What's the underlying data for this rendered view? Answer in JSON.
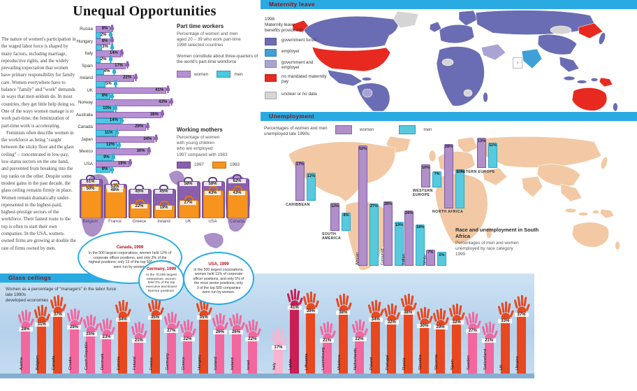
{
  "page_title": "Unequal Opportunities",
  "intro": {
    "para1": "The nature of women's participation in the waged labor force is shaped by many factors, including marriage, reproductive rights, and the widely prevailing expectation that women have primary responsibility for family care. Women everywhere have to balance \"family\" and \"work\" demands in ways that men seldom do. In most countries, they get little help doing so. One of the ways women manage is to work part-time; the feminization of part-time work is accelerating.",
    "para2": "Feminists often describe women in the workforce as being \"caught between the sticky floor and the glass ceiling\" – concentrated in low-pay, low-status sectors on the one hand, and prevented from breaking into the top ranks on the other. Despite some modest gains in the past decade, the glass ceiling remains firmly in place. Women remain dramatically under-represented in the highest-paid, highest-prestige sectors of the workforce. Their fastest route to the top is often to start their own companies. In the USA, women-owned firms are growing at double the rate of firms owned by men."
  },
  "colors": {
    "women_bar": "#b690d2",
    "women_icon": "#8f63b5",
    "men_bar": "#4cc7e2",
    "men_icon": "#2fafd0",
    "purple_1997": "#8a5fae",
    "orange_1983": "#f7941d",
    "header_bar": "#29abe2",
    "header_text": "#7c1518",
    "map_slate": "#6a6db3",
    "map_blue": "#3fa0d8",
    "map_lightpurple": "#a8a4d4",
    "map_red": "#e8291f",
    "map_gray": "#d5d5d5",
    "map_peach": "#f2c9a4",
    "unemp_women": "#b18fc9",
    "unemp_men": "#58cade",
    "hand": {
      "low": "#f8b4cf",
      "mid": "#f2679e",
      "high": "#e8481f",
      "top": "#c81f55"
    }
  },
  "chart_data": [
    {
      "id": "part_time_workers",
      "type": "bar",
      "orientation": "horizontal",
      "unit": "%",
      "title": "Part time workers",
      "subtitle": "Percentage of women and men\naged 20 – 39 who work part-time\n1998  selected countries",
      "note": "Women constitute about three-quarters of the world's part-time workforce",
      "legend": [
        "women",
        "men"
      ],
      "categories": [
        "Russia",
        "Hungary",
        "Italy",
        "Spain",
        "Ireland",
        "UK",
        "Norway",
        "Australia",
        "Canada",
        "Japan",
        "Mexico",
        "USA"
      ],
      "series": [
        {
          "name": "women",
          "values": [
            8,
            8,
            14,
            17,
            22,
            41,
            43,
            38,
            29,
            34,
            30,
            19
          ]
        },
        {
          "name": "men",
          "values": [
            2,
            3,
            2,
            4,
            5,
            8,
            10,
            14,
            11,
            12,
            9,
            8
          ]
        }
      ],
      "xlim": [
        0,
        45
      ]
    },
    {
      "id": "working_mothers",
      "type": "bar",
      "unit": "%",
      "title": "Working mothers",
      "subtitle": "Percentage of women\nwith young children\nwho are employed\n1997 compared with 1983",
      "legend": [
        "1997",
        "1983"
      ],
      "categories": [
        "Belgium",
        "France",
        "Greece",
        "Ireland",
        "UK",
        "USA",
        "Canada"
      ],
      "series": [
        {
          "name": "1997",
          "values": [
            61,
            53,
            45,
            45,
            58,
            58,
            62
          ]
        },
        {
          "name": "1983",
          "values": [
            50,
            48,
            22,
            19,
            27,
            43,
            43
          ]
        }
      ],
      "ylim": [
        0,
        70
      ]
    },
    {
      "id": "maternity_leave",
      "type": "choropleth-map",
      "title": "Maternity leave",
      "subtitle": "1998\nMaternity leave\nbenefits provided by:",
      "legend": [
        {
          "label": "government funds",
          "color": "#6a6db3"
        },
        {
          "label": "employer",
          "color": "#3fa0d8"
        },
        {
          "label": "government and\nemployer",
          "color": "#a8a4d4"
        },
        {
          "label": "no mandated maternity pay",
          "color": "#e8291f"
        },
        {
          "label": "unclear or no data",
          "color": "#d5d5d5",
          "gap": true
        }
      ]
    },
    {
      "id": "unemployment",
      "type": "bar",
      "unit": "%",
      "title": "Unemployment",
      "subtitle": "Percentages of women and men\nunemployed late 1990s",
      "legend": [
        "women",
        "men"
      ],
      "categories": [
        "Caribbean",
        "South America",
        "Western Europe",
        "Eastern Europe",
        "North Africa"
      ],
      "series": [
        {
          "name": "women",
          "values": [
            17,
            12,
            10,
            13,
            28
          ]
        },
        {
          "name": "men",
          "values": [
            12,
            8,
            7,
            11,
            17
          ]
        }
      ],
      "ylim": [
        0,
        55
      ]
    },
    {
      "id": "sa_race_unemployment",
      "type": "bar",
      "unit": "%",
      "title": "Race and unemployment in South Africa",
      "subtitle": "Percentages of men and women\nunemployed by race category\n1999",
      "legend": [
        "women",
        "men"
      ],
      "categories": [
        "African",
        "Coloured",
        "Indian",
        "White"
      ],
      "series": [
        {
          "name": "women",
          "values": [
            52,
            28,
            24,
            7
          ]
        },
        {
          "name": "men",
          "values": [
            27,
            19,
            18,
            6
          ]
        }
      ],
      "ylim": [
        0,
        55
      ]
    },
    {
      "id": "glass_ceilings",
      "type": "bar",
      "unit": "%",
      "title": "Glass ceilings",
      "subtitle": "Women as a percentage of \"managers\" in the labor force\nlate 1990s\ndeveloped economies",
      "categories": [
        "Austria",
        "Belgium",
        "Canada",
        "Croatia",
        "Czech Republic",
        "Denmark",
        "Estonia",
        "Finland",
        "France",
        "Germany",
        "Greece",
        "Hungary",
        "Iceland",
        "Ireland",
        "Israel",
        "Italy",
        "Latvia",
        "Lithuania",
        "Luxembourg",
        "Moldova",
        "Netherlands",
        "Poland",
        "Portugal",
        "Russia",
        "Slovakia",
        "Slovenia",
        "Spain",
        "Sweden",
        "Switzerland",
        "UK",
        "Ukraine"
      ],
      "values": [
        28,
        31,
        37,
        29,
        25,
        23,
        34,
        21,
        35,
        27,
        22,
        35,
        26,
        26,
        22,
        17,
        41,
        39,
        21,
        38,
        22,
        34,
        32,
        38,
        30,
        29,
        32,
        27,
        21,
        33,
        37
      ],
      "levels": [
        "mid",
        "high",
        "high",
        "mid",
        "mid",
        "mid",
        "high",
        "mid",
        "high",
        "mid",
        "mid",
        "high",
        "mid",
        "mid",
        "mid",
        "low",
        "top",
        "high",
        "mid",
        "high",
        "mid",
        "high",
        "high",
        "high",
        "high",
        "high",
        "high",
        "mid",
        "mid",
        "high",
        "high"
      ],
      "ylim": [
        0,
        45
      ]
    }
  ],
  "bubbles": [
    {
      "title": "Canada, 1999",
      "text": "In the 500 largest corporations, women held 12% of corporate officer positions, and only 3% of the highest positions; only 13 of the top 500 companies were run by women."
    },
    {
      "title": "Germany, 1999",
      "text": "In the 70,000 largest enterprises, women held 3% of the top executive and Board Director positions."
    },
    {
      "title": "USA, 1999",
      "text": "In the 500 largest corporations, women held 11% of corporate officer positions, and only 5% of the most senior positions; only 3 of the top 500 companies were run by women."
    }
  ],
  "nav": {
    "next": "›"
  }
}
